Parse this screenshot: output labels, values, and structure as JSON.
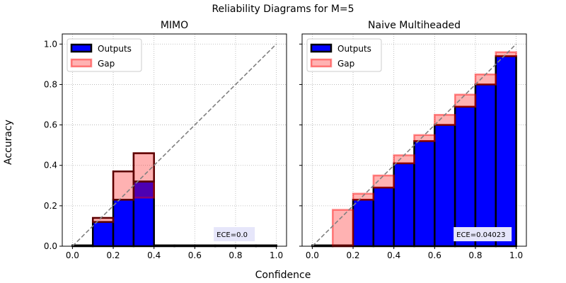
{
  "figure": {
    "suptitle": "Reliability Diagrams for M=5",
    "xlabel": "Confidence",
    "ylabel": "Accuracy"
  },
  "colors": {
    "outputs_fill": "#0000ff",
    "outputs_edge": "#000000",
    "gap_fill": "#ff0000",
    "gap_edge": "#ff0000",
    "diagonal": "#808080",
    "grid": "#b0b0b0",
    "ece_box": "#e6e6fa"
  },
  "chart_data": [
    {
      "type": "bar",
      "title": "MIMO",
      "xlim": [
        -0.05,
        1.05
      ],
      "ylim": [
        0,
        1.05
      ],
      "xticks": [
        "0.0",
        "0.2",
        "0.4",
        "0.6",
        "0.8",
        "1.0"
      ],
      "yticks": [
        "0.0",
        "0.2",
        "0.4",
        "0.6",
        "0.8",
        "1.0"
      ],
      "grid": true,
      "legend_position": "top-left",
      "bin_edges": [
        0.0,
        0.1,
        0.2,
        0.3,
        0.4,
        0.5,
        0.6,
        0.7,
        0.8,
        0.9,
        1.0
      ],
      "series": [
        {
          "name": "Outputs",
          "values": [
            0.0,
            0.12,
            0.23,
            0.32,
            0.0,
            0.0,
            0.0,
            0.0,
            0.0,
            0.0
          ]
        },
        {
          "name": "Gap",
          "values": [
            0.0,
            0.02,
            0.14,
            0.14,
            0.0,
            0.0,
            0.0,
            0.0,
            0.0,
            0.0
          ]
        }
      ],
      "bar_outline_top": [
        0.0,
        0.14,
        0.37,
        0.46,
        0.0,
        0.0,
        0.0,
        0.0,
        0.0,
        0.0
      ],
      "annotation": "ECE=0.0"
    },
    {
      "type": "bar",
      "title": "Naive Multiheaded",
      "xlim": [
        -0.05,
        1.05
      ],
      "ylim": [
        0,
        1.05
      ],
      "xticks": [
        "0.0",
        "0.2",
        "0.4",
        "0.6",
        "0.8",
        "1.0"
      ],
      "yticks": [
        "0.0",
        "0.2",
        "0.4",
        "0.6",
        "0.8",
        "1.0"
      ],
      "grid": true,
      "legend_position": "top-left",
      "bin_edges": [
        0.0,
        0.1,
        0.2,
        0.3,
        0.4,
        0.5,
        0.6,
        0.7,
        0.8,
        0.9,
        1.0
      ],
      "series": [
        {
          "name": "Outputs",
          "values": [
            0.0,
            0.0,
            0.23,
            0.29,
            0.41,
            0.52,
            0.6,
            0.69,
            0.8,
            0.94
          ]
        },
        {
          "name": "Gap",
          "values": [
            0.0,
            0.18,
            0.03,
            0.06,
            0.04,
            0.03,
            0.05,
            0.06,
            0.05,
            0.02
          ]
        }
      ],
      "bar_outline_top": [
        0.0,
        0.0,
        0.23,
        0.29,
        0.41,
        0.52,
        0.6,
        0.69,
        0.8,
        0.94
      ],
      "annotation": "ECE=0.04023"
    }
  ]
}
